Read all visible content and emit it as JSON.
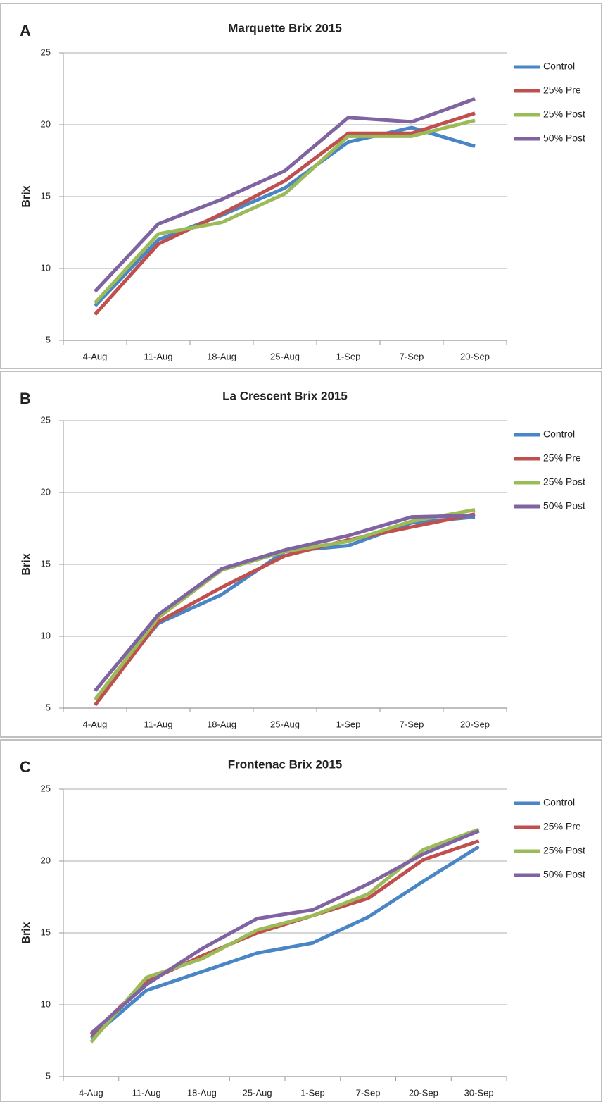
{
  "chart_data": [
    {
      "type": "line",
      "panel": "A",
      "title": "Marquette Brix 2015",
      "y_label": "Brix",
      "categories": [
        "4-Aug",
        "11-Aug",
        "18-Aug",
        "25-Aug",
        "1-Sep",
        "7-Sep",
        "20-Sep"
      ],
      "series": [
        {
          "name": "Control",
          "color": "#4a86c6",
          "values": [
            7.4,
            12.0,
            13.7,
            15.6,
            18.8,
            19.8,
            18.5
          ]
        },
        {
          "name": "25% Pre",
          "color": "#c0504d",
          "values": [
            6.8,
            11.7,
            13.8,
            16.1,
            19.4,
            19.4,
            20.8
          ]
        },
        {
          "name": "25% Post",
          "color": "#9bbb59",
          "values": [
            7.6,
            12.4,
            13.2,
            15.2,
            19.2,
            19.2,
            20.3
          ]
        },
        {
          "name": "50% Post",
          "color": "#8064a2",
          "values": [
            8.4,
            13.1,
            14.8,
            16.8,
            20.5,
            20.2,
            21.8
          ]
        }
      ],
      "ylim": [
        5,
        25
      ],
      "yticks": [
        5,
        10,
        15,
        20,
        25
      ],
      "grid": true,
      "legend": "right"
    },
    {
      "type": "line",
      "panel": "B",
      "title": "La Crescent Brix 2015",
      "y_label": "Brix",
      "categories": [
        "4-Aug",
        "11-Aug",
        "18-Aug",
        "25-Aug",
        "1-Sep",
        "7-Sep",
        "20-Sep"
      ],
      "series": [
        {
          "name": "Control",
          "color": "#4a86c6",
          "values": [
            5.6,
            10.9,
            12.9,
            15.9,
            16.3,
            17.9,
            18.3
          ]
        },
        {
          "name": "25% Pre",
          "color": "#c0504d",
          "values": [
            5.2,
            11.0,
            13.4,
            15.6,
            16.7,
            17.6,
            18.5
          ]
        },
        {
          "name": "25% Post",
          "color": "#9bbb59",
          "values": [
            5.6,
            11.3,
            14.6,
            15.9,
            16.6,
            18.0,
            18.8
          ]
        },
        {
          "name": "50% Post",
          "color": "#8064a2",
          "values": [
            6.2,
            11.5,
            14.7,
            16.0,
            17.0,
            18.3,
            18.4
          ]
        }
      ],
      "ylim": [
        5,
        25
      ],
      "yticks": [
        5,
        10,
        15,
        20,
        25
      ],
      "grid": true,
      "legend": "right"
    },
    {
      "type": "line",
      "panel": "C",
      "title": "Frontenac Brix 2015",
      "y_label": "Brix",
      "categories": [
        "4-Aug",
        "11-Aug",
        "18-Aug",
        "25-Aug",
        "1-Sep",
        "7-Sep",
        "20-Sep",
        "30-Sep"
      ],
      "series": [
        {
          "name": "Control",
          "color": "#4a86c6",
          "values": [
            7.7,
            11.0,
            12.3,
            13.6,
            14.3,
            16.1,
            18.6,
            21.0
          ]
        },
        {
          "name": "25% Pre",
          "color": "#c0504d",
          "values": [
            7.9,
            11.6,
            13.4,
            15.0,
            16.2,
            17.4,
            20.1,
            21.4
          ]
        },
        {
          "name": "25% Post",
          "color": "#9bbb59",
          "values": [
            7.4,
            11.9,
            13.2,
            15.2,
            16.2,
            17.7,
            20.8,
            22.2
          ]
        },
        {
          "name": "50% Post",
          "color": "#8064a2",
          "values": [
            8.0,
            11.4,
            13.9,
            16.0,
            16.6,
            18.4,
            20.5,
            22.1
          ]
        }
      ],
      "ylim": [
        5,
        25
      ],
      "yticks": [
        5,
        10,
        15,
        20,
        25
      ],
      "grid": true,
      "legend": "right"
    }
  ]
}
